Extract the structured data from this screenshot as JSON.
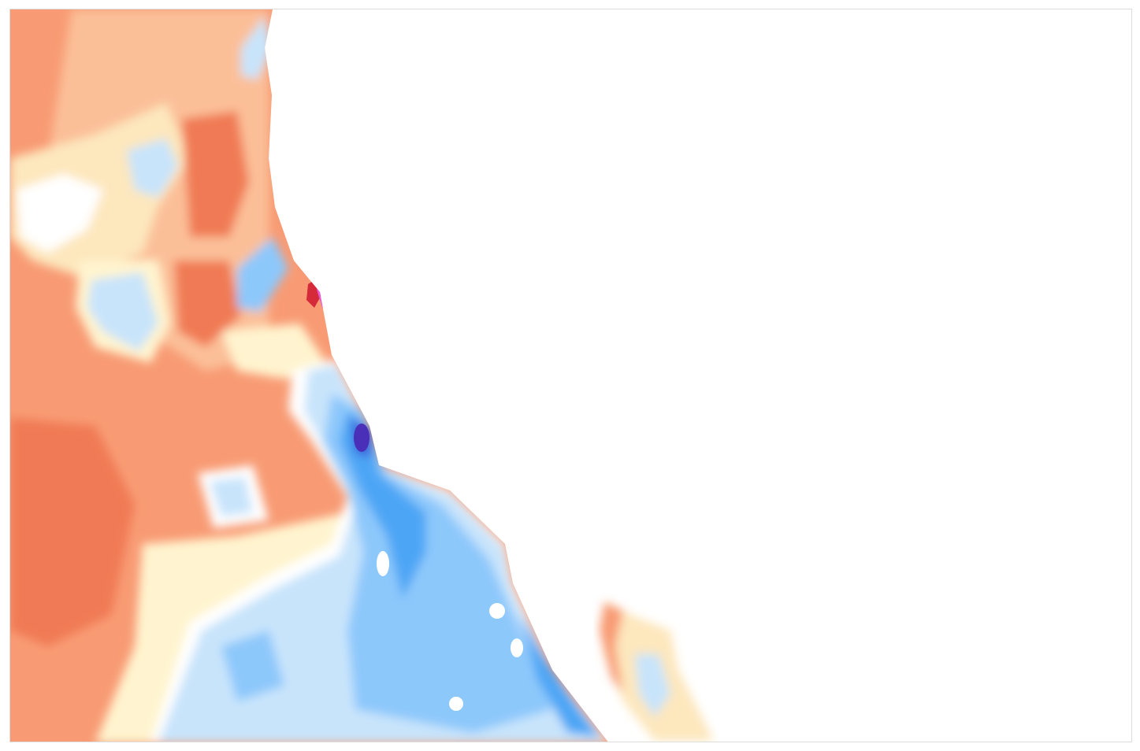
{
  "map": {
    "ocean_color": "#ffffff",
    "palette": {
      "warm_dark": "#f07a55",
      "warm": "#f89b74",
      "warm_light": "#fbbf98",
      "pale": "#fde7bd",
      "pale_yellow": "#fff4cf",
      "neutral": "#ffffff",
      "cool_light": "#c8e4fb",
      "cool": "#8dc8fb",
      "cool_mid": "#4ea6f5",
      "cool_dark": "#3a5fd8",
      "deep": "#4a2fb8",
      "hot_red": "#d42a3a",
      "hot_magenta": "#e85ad8"
    }
  }
}
